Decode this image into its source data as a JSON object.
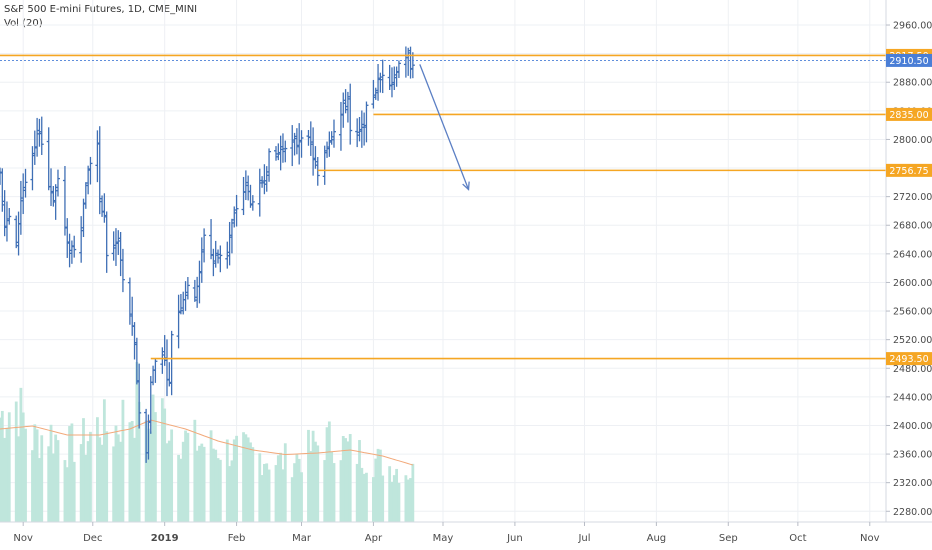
{
  "header": {
    "symbol_line": "S&P 500 E-mini Futures, 1D, CME_MINI",
    "volume_line": "Vol (20)"
  },
  "colors": {
    "bar": "#3f6fb5",
    "level_line": "#f5a623",
    "level_tag_text": "#ffffff",
    "price_tag": "#4a7ed6",
    "volume": "#bfe6dc",
    "volume_ma": "#f2a97a",
    "grid": "#eef0f4",
    "axis_text": "#4a4a4a"
  },
  "chart_data": {
    "type": "ohlc-bar",
    "title": "S&P 500 E-mini Futures, 1D, CME_MINI",
    "y_axis": {
      "ticks": [
        2280,
        2320,
        2360,
        2400,
        2440,
        2480,
        2520,
        2560,
        2600,
        2640,
        2680,
        2720,
        2760,
        2800,
        2840,
        2880,
        2920,
        2960
      ],
      "tick_labels": [
        "2280.00",
        "2320.00",
        "2360.00",
        "2400.00",
        "2440.00",
        "2480.00",
        "2520.00",
        "2560.00",
        "2600.00",
        "2640.00",
        "2680.00",
        "2720.00",
        "2760.00",
        "2800.00",
        "2840.00",
        "2880.00",
        "2920.00",
        "2960.00"
      ],
      "ylim": [
        2265,
        2995
      ]
    },
    "x_axis": {
      "start": "2018-10-22",
      "end": "2019-11-08",
      "ticks": [
        {
          "date": "2018-11-01",
          "label": "Nov",
          "bold": false
        },
        {
          "date": "2018-12-01",
          "label": "Dec",
          "bold": false
        },
        {
          "date": "2019-01-01",
          "label": "2019",
          "bold": true
        },
        {
          "date": "2019-02-01",
          "label": "Feb",
          "bold": false
        },
        {
          "date": "2019-03-01",
          "label": "Mar",
          "bold": false
        },
        {
          "date": "2019-04-01",
          "label": "Apr",
          "bold": false
        },
        {
          "date": "2019-05-01",
          "label": "May",
          "bold": false
        },
        {
          "date": "2019-06-01",
          "label": "Jun",
          "bold": false
        },
        {
          "date": "2019-07-01",
          "label": "Jul",
          "bold": false
        },
        {
          "date": "2019-08-01",
          "label": "Aug",
          "bold": false
        },
        {
          "date": "2019-09-01",
          "label": "Sep",
          "bold": false
        },
        {
          "date": "2019-10-01",
          "label": "Oct",
          "bold": false
        },
        {
          "date": "2019-11-01",
          "label": "Nov",
          "bold": false
        }
      ]
    },
    "levels": [
      {
        "price": 2917.5,
        "label": "2917.50",
        "start": "2018-10-22"
      },
      {
        "price": 2835.0,
        "label": "2835.00",
        "start": "2019-04-01"
      },
      {
        "price": 2756.75,
        "label": "2756.75",
        "start": "2019-03-08"
      },
      {
        "price": 2493.5,
        "label": "2493.50",
        "start": "2018-12-26"
      }
    ],
    "last_price": {
      "price": 2910.5,
      "label": "2910.50"
    },
    "arrow": {
      "from": {
        "date": "2019-04-21",
        "price": 2905
      },
      "to": {
        "date": "2019-05-12",
        "price": 2730
      }
    },
    "waypoints": [
      [
        "2018-10-22",
        2760
      ],
      [
        "2018-10-24",
        2680
      ],
      [
        "2018-10-26",
        2690
      ],
      [
        "2018-10-29",
        2650
      ],
      [
        "2018-10-31",
        2720
      ],
      [
        "2018-11-02",
        2740
      ],
      [
        "2018-11-05",
        2770
      ],
      [
        "2018-11-07",
        2800
      ],
      [
        "2018-11-08",
        2815
      ],
      [
        "2018-11-12",
        2735
      ],
      [
        "2018-11-14",
        2720
      ],
      [
        "2018-11-16",
        2745
      ],
      [
        "2018-11-20",
        2650
      ],
      [
        "2018-11-23",
        2650
      ],
      [
        "2018-11-26",
        2680
      ],
      [
        "2018-11-28",
        2740
      ],
      [
        "2018-11-30",
        2770
      ],
      [
        "2018-12-03",
        2795
      ],
      [
        "2018-12-04",
        2710
      ],
      [
        "2018-12-06",
        2690
      ],
      [
        "2018-12-07",
        2640
      ],
      [
        "2018-12-10",
        2650
      ],
      [
        "2018-12-12",
        2660
      ],
      [
        "2018-12-14",
        2600
      ],
      [
        "2018-12-17",
        2555
      ],
      [
        "2018-12-19",
        2510
      ],
      [
        "2018-12-21",
        2420
      ],
      [
        "2018-12-24",
        2360
      ],
      [
        "2018-12-26",
        2460
      ],
      [
        "2018-12-28",
        2490
      ],
      [
        "2018-12-31",
        2505
      ],
      [
        "2019-01-03",
        2455
      ],
      [
        "2019-01-04",
        2530
      ],
      [
        "2019-01-08",
        2570
      ],
      [
        "2019-01-10",
        2590
      ],
      [
        "2019-01-14",
        2585
      ],
      [
        "2019-01-16",
        2610
      ],
      [
        "2019-01-18",
        2670
      ],
      [
        "2019-01-22",
        2630
      ],
      [
        "2019-01-24",
        2640
      ],
      [
        "2019-01-28",
        2645
      ],
      [
        "2019-01-30",
        2680
      ],
      [
        "2019-02-01",
        2705
      ],
      [
        "2019-02-05",
        2735
      ],
      [
        "2019-02-08",
        2705
      ],
      [
        "2019-02-13",
        2750
      ],
      [
        "2019-02-15",
        2775
      ],
      [
        "2019-02-19",
        2780
      ],
      [
        "2019-02-22",
        2795
      ],
      [
        "2019-02-27",
        2795
      ],
      [
        "2019-03-01",
        2810
      ],
      [
        "2019-03-05",
        2790
      ],
      [
        "2019-03-08",
        2745
      ],
      [
        "2019-03-11",
        2785
      ],
      [
        "2019-03-14",
        2810
      ],
      [
        "2019-03-18",
        2835
      ],
      [
        "2019-03-21",
        2860
      ],
      [
        "2019-03-22",
        2810
      ],
      [
        "2019-03-25",
        2800
      ],
      [
        "2019-03-27",
        2815
      ],
      [
        "2019-03-29",
        2840
      ],
      [
        "2019-04-02",
        2870
      ],
      [
        "2019-04-05",
        2895
      ],
      [
        "2019-04-09",
        2880
      ],
      [
        "2019-04-12",
        2910
      ],
      [
        "2019-04-15",
        2910
      ],
      [
        "2019-04-16",
        2915
      ],
      [
        "2019-04-17",
        2905
      ],
      [
        "2019-04-18",
        2910
      ]
    ],
    "volume_waypoints": [
      [
        "2018-10-22",
        70
      ],
      [
        "2018-10-29",
        80
      ],
      [
        "2018-11-05",
        55
      ],
      [
        "2018-11-12",
        60
      ],
      [
        "2018-11-20",
        50
      ],
      [
        "2018-11-28",
        55
      ],
      [
        "2018-12-04",
        65
      ],
      [
        "2018-12-10",
        60
      ],
      [
        "2018-12-14",
        70
      ],
      [
        "2018-12-19",
        75
      ],
      [
        "2018-12-21",
        95
      ],
      [
        "2018-12-24",
        55
      ],
      [
        "2018-12-27",
        80
      ],
      [
        "2019-01-03",
        65
      ],
      [
        "2019-01-10",
        55
      ],
      [
        "2019-01-18",
        52
      ],
      [
        "2019-01-28",
        48
      ],
      [
        "2019-02-08",
        46
      ],
      [
        "2019-02-19",
        40
      ],
      [
        "2019-03-01",
        44
      ],
      [
        "2019-03-08",
        52
      ],
      [
        "2019-03-15",
        55
      ],
      [
        "2019-03-22",
        48
      ],
      [
        "2019-04-01",
        42
      ],
      [
        "2019-04-10",
        36
      ],
      [
        "2019-04-18",
        33
      ]
    ],
    "volume_ma_waypoints": [
      [
        "2018-10-22",
        62
      ],
      [
        "2018-11-05",
        64
      ],
      [
        "2018-11-20",
        58
      ],
      [
        "2018-12-04",
        58
      ],
      [
        "2018-12-17",
        62
      ],
      [
        "2018-12-26",
        68
      ],
      [
        "2019-01-10",
        62
      ],
      [
        "2019-01-24",
        54
      ],
      [
        "2019-02-08",
        48
      ],
      [
        "2019-02-22",
        45
      ],
      [
        "2019-03-08",
        46
      ],
      [
        "2019-03-22",
        48
      ],
      [
        "2019-04-05",
        44
      ],
      [
        "2019-04-18",
        38
      ]
    ]
  }
}
